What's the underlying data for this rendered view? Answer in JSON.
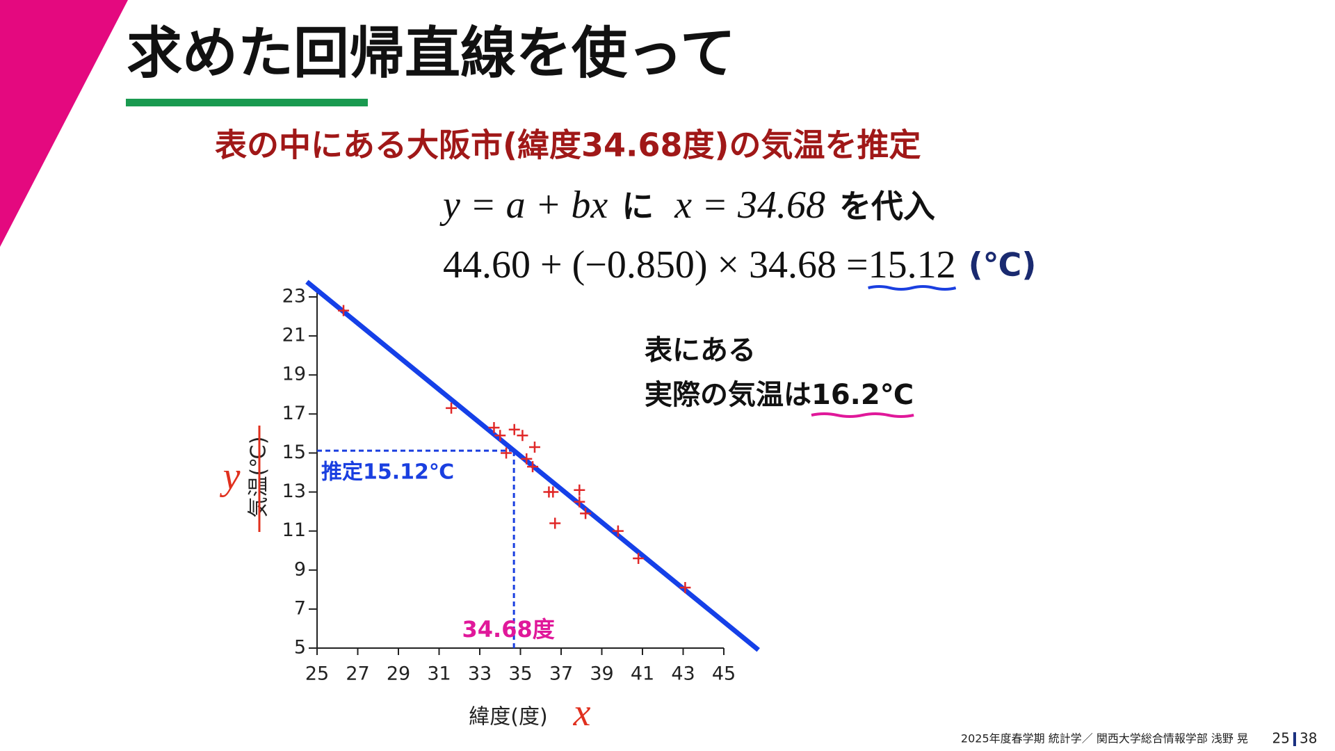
{
  "slide": {
    "title": "求めた回帰直線を使って",
    "subtitle": "表の中にある大阪市(緯度34.68度)の気温を推定",
    "formula_line1": [
      "y = a + bx",
      "に",
      "x = 34.68",
      "を代入"
    ],
    "formula_line2": [
      "44.60 + (−0.850) × 34.68 = ",
      "15.12",
      "(℃)"
    ],
    "note": [
      "表にある",
      "実際の気温は",
      "16.2℃"
    ],
    "footer": "2025年度春学期  統計学／  関西大学総合情報学部  浅野  晃",
    "page": "25",
    "total": "38"
  },
  "chart_data": {
    "type": "scatter",
    "x_label": "緯度(度)",
    "y_label": "気温(℃)",
    "x_symbol": "x",
    "y_symbol": "y",
    "x": [
      26.3,
      31.6,
      33.7,
      34.0,
      34.7,
      35.1,
      35.7,
      34.3,
      35.3,
      35.6,
      36.4,
      36.6,
      37.9,
      36.7,
      37.9,
      38.2,
      39.8,
      40.8,
      43.1
    ],
    "values": [
      22.3,
      17.3,
      16.3,
      15.9,
      16.2,
      15.9,
      15.3,
      15.0,
      14.7,
      14.3,
      13.0,
      13.0,
      13.1,
      11.4,
      12.5,
      11.9,
      11.0,
      9.6,
      8.1
    ],
    "color": "#e02828",
    "xlim": [
      25,
      45
    ],
    "ylim": [
      5,
      23
    ],
    "xticks": [
      25,
      27,
      29,
      31,
      33,
      35,
      37,
      39,
      41,
      43,
      45
    ],
    "yticks": [
      5,
      7,
      9,
      11,
      13,
      15,
      17,
      19,
      21,
      23
    ],
    "regression": {
      "intercept": 44.6,
      "slope": -0.85,
      "x_range": [
        24.5,
        46.7
      ],
      "color": "#1540e8"
    },
    "estimate": {
      "x": 34.68,
      "y": 15.12,
      "x_label": "34.68度",
      "y_label": "推定15.12℃"
    }
  }
}
